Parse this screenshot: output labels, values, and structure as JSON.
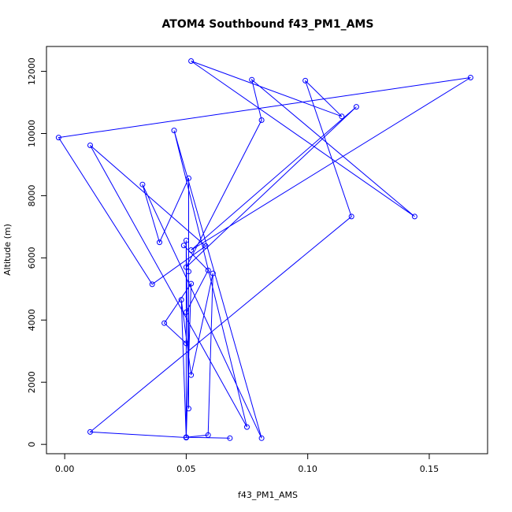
{
  "chart_data": {
    "type": "line",
    "title": "ATOM4 Southbound f43_PM1_AMS",
    "xlabel": "f43_PM1_AMS",
    "ylabel": "Altitude (m)",
    "xlim": [
      -0.0075,
      0.174
    ],
    "ylim": [
      -300,
      12800
    ],
    "x_ticks": [
      0.0,
      0.05,
      0.1,
      0.15
    ],
    "x_tick_labels": [
      "0.00",
      "0.05",
      "0.10",
      "0.15"
    ],
    "y_ticks": [
      0,
      2000,
      4000,
      6000,
      8000,
      10000,
      12000
    ],
    "y_tick_labels": [
      "0",
      "2000",
      "4000",
      "6000",
      "8000",
      "10000",
      "12000"
    ],
    "grid": false,
    "legend": "none",
    "series_color": "#0000ff",
    "series": [
      {
        "points": [
          [
            0.068,
            200
          ],
          [
            0.05,
            230
          ],
          [
            0.05,
            220
          ],
          [
            0.0105,
            400
          ],
          [
            0.118,
            7330
          ],
          [
            0.099,
            11700
          ],
          [
            0.114,
            10550
          ],
          [
            0.052,
            12330
          ],
          [
            0.144,
            7330
          ],
          [
            0.077,
            11730
          ],
          [
            0.081,
            10430
          ],
          [
            0.05,
            5700
          ],
          [
            0.12,
            10860
          ],
          [
            0.052,
            6250
          ],
          [
            0.167,
            11800
          ],
          [
            -0.0025,
            9870
          ],
          [
            0.036,
            5150
          ],
          [
            0.058,
            6380
          ],
          [
            0.0105,
            9620
          ],
          [
            0.075,
            560
          ],
          [
            0.045,
            10100
          ],
          [
            0.081,
            200
          ],
          [
            0.032,
            8360
          ],
          [
            0.039,
            6500
          ],
          [
            0.051,
            8560
          ],
          [
            0.051,
            5560
          ],
          [
            0.051,
            1150
          ],
          [
            0.05,
            6560
          ],
          [
            0.05,
            3250
          ],
          [
            0.041,
            3900
          ],
          [
            0.052,
            5170
          ],
          [
            0.05,
            230
          ],
          [
            0.059,
            300
          ],
          [
            0.061,
            5500
          ],
          [
            0.052,
            2230
          ],
          [
            0.048,
            4650
          ],
          [
            0.05,
            220
          ],
          [
            0.05,
            4250
          ],
          [
            0.059,
            5600
          ],
          [
            0.049,
            6400
          ]
        ]
      }
    ]
  }
}
